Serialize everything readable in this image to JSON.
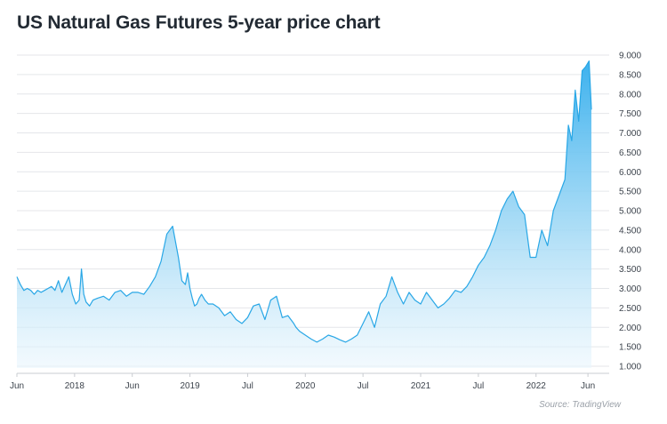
{
  "title": "US Natural Gas Futures 5-year price chart",
  "source": "Source: TradingView",
  "colors": {
    "line": "#29a7e6",
    "fill_top": "#3cb1ee",
    "fill_bottom": "#eaf6fd",
    "grid": "#e4e6ea"
  },
  "chart_data": {
    "type": "area",
    "title": "US Natural Gas Futures 5-year price chart",
    "xlabel": "",
    "ylabel": "",
    "ylim": [
      0.7,
      9.2
    ],
    "yticks": [
      "1.000",
      "1.500",
      "2.000",
      "2.500",
      "3.000",
      "3.500",
      "4.000",
      "4.500",
      "5.000",
      "5.500",
      "6.000",
      "6.500",
      "7.000",
      "7.500",
      "8.000",
      "8.500",
      "9.000"
    ],
    "xticks": [
      {
        "label": "Jun",
        "t": 0.0
      },
      {
        "label": "2018",
        "t": 0.5
      },
      {
        "label": "Jun",
        "t": 1.0
      },
      {
        "label": "2019",
        "t": 1.5
      },
      {
        "label": "Jul",
        "t": 2.0
      },
      {
        "label": "2020",
        "t": 2.5
      },
      {
        "label": "Jul",
        "t": 3.0
      },
      {
        "label": "2021",
        "t": 3.5
      },
      {
        "label": "Jul",
        "t": 4.0
      },
      {
        "label": "2022",
        "t": 4.5
      },
      {
        "label": "Jun",
        "t": 4.95
      }
    ],
    "x": [
      0.0,
      0.03,
      0.06,
      0.09,
      0.12,
      0.15,
      0.18,
      0.21,
      0.24,
      0.27,
      0.3,
      0.33,
      0.36,
      0.39,
      0.42,
      0.45,
      0.48,
      0.51,
      0.54,
      0.56,
      0.58,
      0.6,
      0.63,
      0.66,
      0.7,
      0.75,
      0.8,
      0.85,
      0.9,
      0.95,
      1.0,
      1.05,
      1.1,
      1.15,
      1.2,
      1.25,
      1.3,
      1.35,
      1.4,
      1.43,
      1.46,
      1.48,
      1.5,
      1.52,
      1.54,
      1.56,
      1.58,
      1.6,
      1.63,
      1.66,
      1.7,
      1.75,
      1.8,
      1.85,
      1.9,
      1.95,
      2.0,
      2.05,
      2.1,
      2.15,
      2.2,
      2.25,
      2.3,
      2.35,
      2.4,
      2.42,
      2.45,
      2.5,
      2.55,
      2.6,
      2.65,
      2.7,
      2.75,
      2.8,
      2.85,
      2.9,
      2.95,
      3.0,
      3.05,
      3.1,
      3.15,
      3.2,
      3.25,
      3.3,
      3.35,
      3.4,
      3.45,
      3.5,
      3.55,
      3.6,
      3.65,
      3.7,
      3.75,
      3.8,
      3.85,
      3.9,
      3.95,
      4.0,
      4.05,
      4.1,
      4.15,
      4.2,
      4.25,
      4.3,
      4.35,
      4.4,
      4.45,
      4.5,
      4.55,
      4.6,
      4.65,
      4.7,
      4.75,
      4.78,
      4.81,
      4.84,
      4.87,
      4.9,
      4.93,
      4.96,
      4.98
    ],
    "values": [
      3.3,
      3.1,
      2.95,
      3.0,
      2.95,
      2.85,
      2.95,
      2.9,
      2.95,
      3.0,
      3.05,
      2.95,
      3.2,
      2.9,
      3.1,
      3.3,
      2.85,
      2.6,
      2.7,
      3.5,
      2.85,
      2.65,
      2.55,
      2.7,
      2.75,
      2.8,
      2.7,
      2.9,
      2.95,
      2.8,
      2.9,
      2.9,
      2.85,
      3.05,
      3.3,
      3.7,
      4.4,
      4.6,
      3.8,
      3.2,
      3.1,
      3.4,
      3.0,
      2.75,
      2.55,
      2.6,
      2.75,
      2.85,
      2.7,
      2.6,
      2.6,
      2.5,
      2.3,
      2.4,
      2.2,
      2.1,
      2.25,
      2.55,
      2.6,
      2.2,
      2.7,
      2.8,
      2.25,
      2.3,
      2.1,
      2.0,
      1.9,
      1.8,
      1.7,
      1.62,
      1.7,
      1.8,
      1.75,
      1.68,
      1.62,
      1.7,
      1.8,
      2.1,
      2.4,
      2.0,
      2.6,
      2.8,
      3.3,
      2.9,
      2.6,
      2.9,
      2.7,
      2.6,
      2.9,
      2.7,
      2.5,
      2.6,
      2.75,
      2.95,
      2.9,
      3.05,
      3.3,
      3.6,
      3.8,
      4.1,
      4.5,
      5.0,
      5.3,
      5.5,
      5.1,
      4.9,
      3.8,
      3.8,
      4.5,
      4.1,
      5.0,
      5.4,
      5.8,
      7.2,
      6.8,
      8.1,
      7.3,
      8.6,
      8.7,
      8.85,
      7.6
    ]
  }
}
